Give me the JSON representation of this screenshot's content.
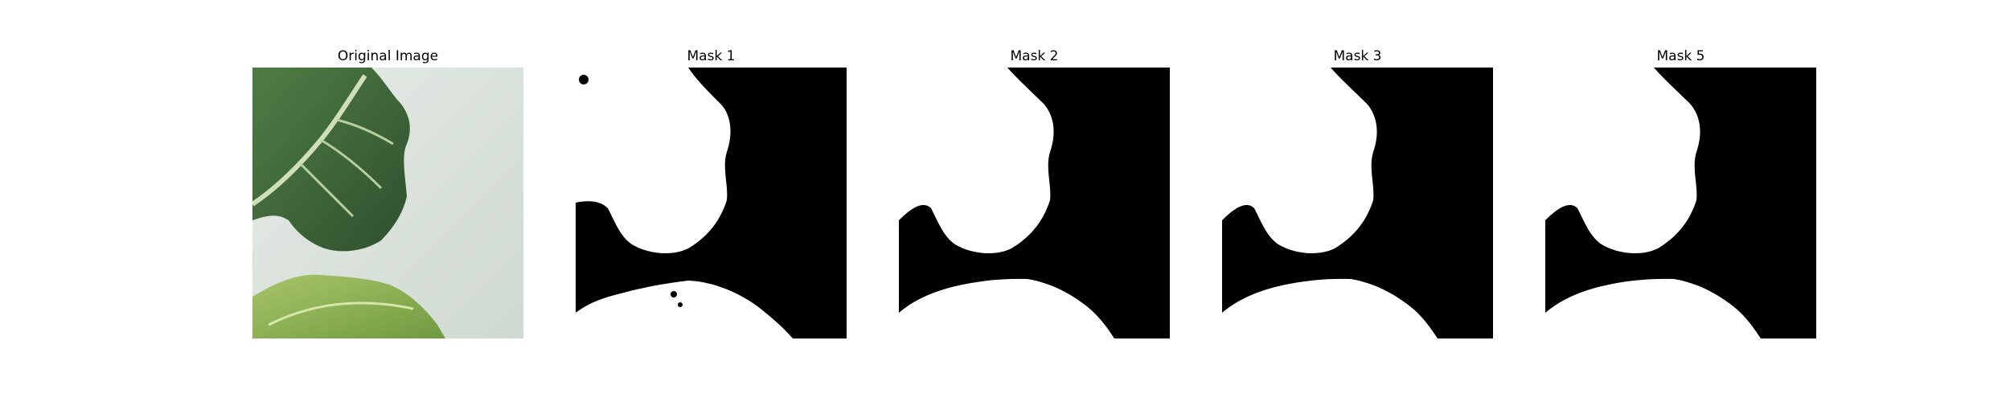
{
  "panels": [
    {
      "title": "Original Image",
      "content": "leaf-photo"
    },
    {
      "title": "Mask 1",
      "content": "segmentation-mask"
    },
    {
      "title": "Mask 2",
      "content": "segmentation-mask"
    },
    {
      "title": "Mask 3",
      "content": "segmentation-mask"
    },
    {
      "title": "Mask 5",
      "content": "segmentation-mask"
    }
  ],
  "colors": {
    "background": "#ffffff",
    "mask_background": "#000000",
    "mask_foreground": "#ffffff",
    "leaf_dark": "#3f6b3a",
    "leaf_light": "#8fb35a",
    "photo_background": "#dfe6df"
  }
}
